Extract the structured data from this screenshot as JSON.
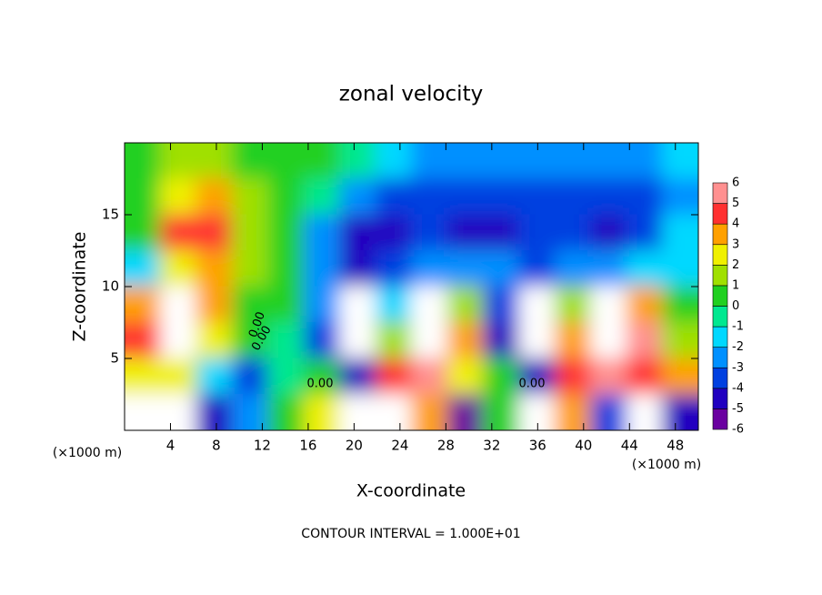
{
  "chart_data": {
    "type": "heatmap",
    "title": "zonal velocity",
    "x_label": "X-coordinate",
    "y_label": "Z-coordinate",
    "x_unit": "(×1000 m)",
    "footer": "CONTOUR INTERVAL = 1.000E+01",
    "contour_labels": [
      "0.00",
      "0.00",
      "0.00",
      "0.00"
    ],
    "xlim": [
      0,
      50
    ],
    "ylim": [
      0,
      20
    ],
    "xticks": [
      4,
      8,
      12,
      16,
      20,
      24,
      28,
      32,
      36,
      40,
      44,
      48
    ],
    "yticks": [
      5,
      10,
      15
    ],
    "x": [
      1.5625,
      4.6875,
      7.8125,
      10.9375,
      14.0625,
      17.1875,
      20.3125,
      23.4375,
      26.5625,
      29.6875,
      32.8125,
      35.9375,
      39.0625,
      42.1875,
      45.3125,
      48.4375
    ],
    "y": [
      18.75,
      16.25,
      13.75,
      11.25,
      8.75,
      6.25,
      3.75,
      1.25
    ],
    "z": [
      [
        1,
        2,
        2,
        1,
        1,
        0.5,
        -0.5,
        -1.5,
        -2,
        -2,
        -2,
        -2,
        -2,
        -2,
        -2,
        -1.5
      ],
      [
        0.5,
        3,
        3.5,
        1.5,
        0.5,
        0,
        -2.5,
        -3.5,
        -3.5,
        -3,
        -3,
        -3,
        -3,
        -3.5,
        -3.5,
        -2
      ],
      [
        0.5,
        4.5,
        4.5,
        2,
        0.5,
        -2.5,
        -4,
        -4,
        -3.5,
        -4,
        -4,
        -3.5,
        -3.5,
        -4.5,
        -3.5,
        -1.5
      ],
      [
        -1.5,
        3,
        4,
        2,
        0.5,
        -2,
        -4.5,
        -3.5,
        -2.5,
        -2.5,
        -2.5,
        -3.5,
        -2.5,
        -2.5,
        -1.5,
        -1
      ],
      [
        4,
        7,
        4,
        1,
        0.5,
        -2,
        -7,
        -1,
        7,
        2,
        -3,
        -7,
        2,
        7,
        4,
        1
      ],
      [
        5,
        7,
        3,
        0.5,
        0,
        -3,
        -7,
        2,
        7,
        4,
        -4,
        -7,
        4,
        7,
        6,
        2
      ],
      [
        3,
        3,
        -1,
        -3,
        0,
        1,
        -4,
        5,
        6,
        3,
        1,
        -4,
        5,
        6,
        5,
        4
      ],
      [
        -7,
        7,
        -4,
        -2,
        0.5,
        3,
        7,
        -7,
        4,
        -6,
        1,
        7,
        4,
        -3,
        -7,
        -4
      ]
    ],
    "colorbar": {
      "levels": [
        -6,
        -5,
        -4,
        -3,
        -2,
        -1,
        0,
        1,
        2,
        3,
        4,
        5,
        6
      ],
      "colors": [
        "#6a00a0",
        "#2000c0",
        "#0040e0",
        "#0090ff",
        "#00d8ff",
        "#00e890",
        "#20d020",
        "#a0e000",
        "#f0f000",
        "#ffa000",
        "#ff3030",
        "#ff9090"
      ],
      "overflow_color": "#ffffff"
    }
  }
}
